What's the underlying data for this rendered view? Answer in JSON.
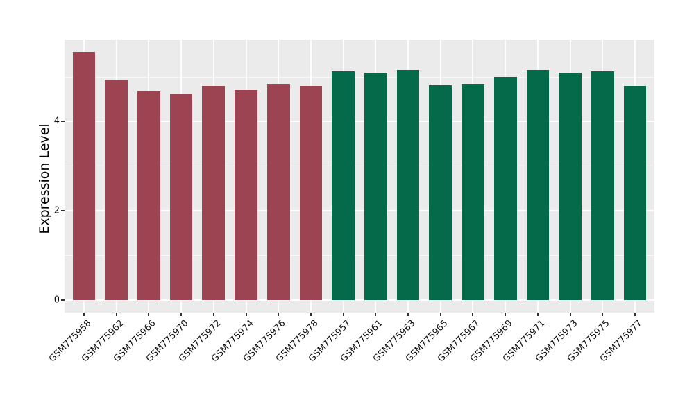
{
  "chart_data": {
    "type": "bar",
    "title": "",
    "xlabel": "",
    "ylabel": "Expression Level",
    "categories": [
      "GSM775958",
      "GSM775962",
      "GSM775966",
      "GSM775970",
      "GSM775972",
      "GSM775974",
      "GSM775976",
      "GSM775978",
      "GSM775957",
      "GSM775961",
      "GSM775963",
      "GSM775965",
      "GSM775967",
      "GSM775969",
      "GSM775971",
      "GSM775973",
      "GSM775975",
      "GSM775977"
    ],
    "values": [
      5.55,
      4.92,
      4.67,
      4.6,
      4.79,
      4.7,
      4.84,
      4.79,
      5.12,
      5.09,
      5.14,
      4.8,
      4.84,
      5.0,
      5.14,
      5.08,
      5.12,
      4.79
    ],
    "bar_group": [
      "A",
      "A",
      "A",
      "A",
      "A",
      "A",
      "A",
      "A",
      "B",
      "B",
      "B",
      "B",
      "B",
      "B",
      "B",
      "B",
      "B",
      "B"
    ],
    "palette": {
      "A": "#9C4451",
      "B": "#046A49"
    },
    "yticks": [
      0,
      2,
      4
    ],
    "yticks_minor": [
      1,
      3,
      5
    ],
    "ylim": [
      -0.28,
      5.83
    ],
    "legend": "none",
    "grid": "on",
    "panel_bg": "#EBEBEB",
    "grid_color": "#FFFFFF",
    "tick_color": "#333333",
    "axis_text_color": "#111111",
    "axis_title_color": "#000000"
  }
}
